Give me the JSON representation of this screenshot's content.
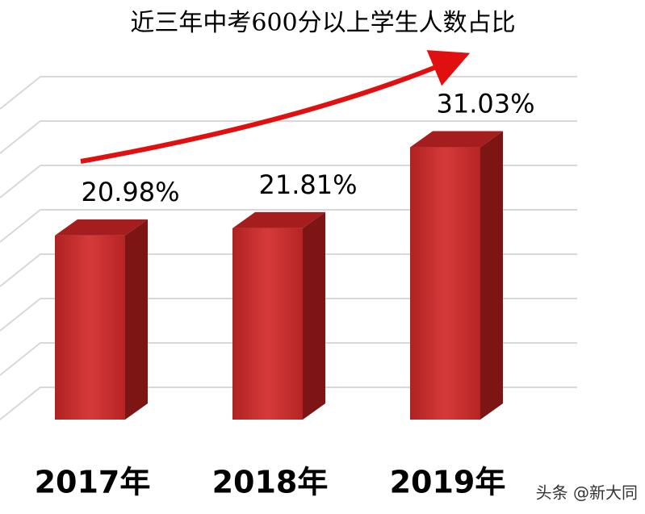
{
  "chart_data": {
    "type": "bar3d",
    "title": "近三年中考600分以上学生人数占比",
    "categories": [
      "2017年",
      "2018年",
      "2019年"
    ],
    "values": [
      20.98,
      21.81,
      31.03
    ],
    "value_labels": [
      "20.98%",
      "21.81%",
      "31.03%"
    ],
    "color": "#c62a2a",
    "ylim": [
      0,
      40
    ],
    "grid": true,
    "watermark": "头条 @新大同"
  }
}
